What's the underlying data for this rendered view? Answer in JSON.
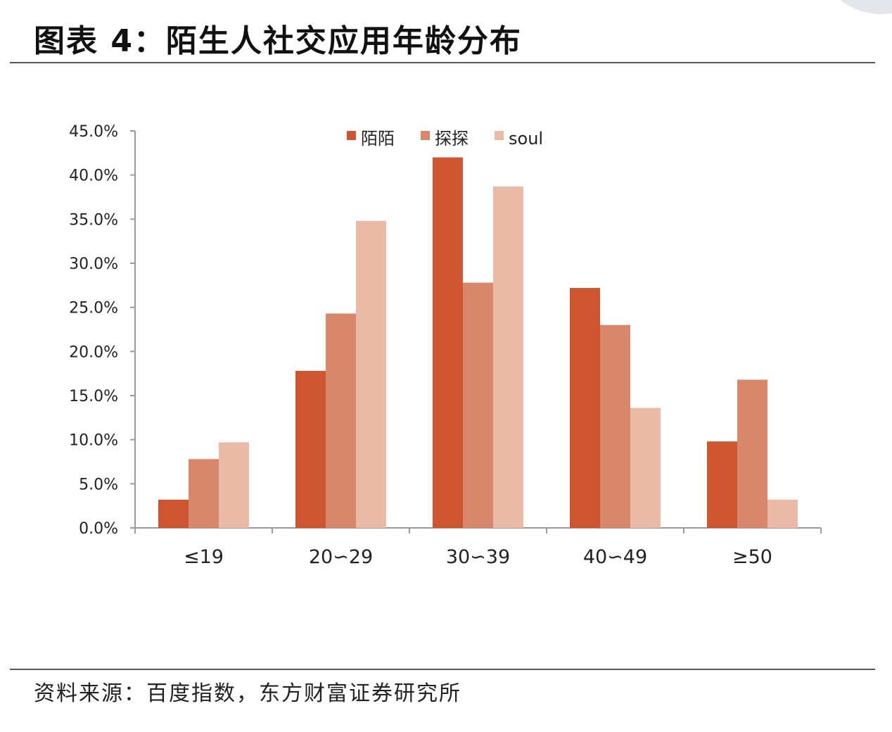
{
  "header": {
    "title": "图表 4：陌生人社交应用年龄分布"
  },
  "footer": {
    "source": "资料来源：百度指数，东方财富证券研究所"
  },
  "chart_data": {
    "type": "bar",
    "categories": [
      "≤19",
      "20∽29",
      "30∽39",
      "40∽49",
      "≥50"
    ],
    "series": [
      {
        "name": "陌陌",
        "color": "#cd5630",
        "values": [
          3.2,
          17.8,
          42.0,
          27.2,
          9.8
        ]
      },
      {
        "name": "探探",
        "color": "#d9876a",
        "values": [
          7.8,
          24.3,
          27.8,
          23.0,
          16.8
        ]
      },
      {
        "name": "soul",
        "color": "#ebbaa6",
        "values": [
          9.7,
          34.8,
          38.7,
          13.6,
          3.2
        ]
      }
    ],
    "ylim": [
      0,
      45
    ],
    "ytick_step": 5,
    "ytick_labels": [
      "0.0%",
      "5.0%",
      "10.0%",
      "15.0%",
      "20.0%",
      "25.0%",
      "30.0%",
      "35.0%",
      "40.0%",
      "45.0%"
    ],
    "legend_position": "top-center",
    "grid": false
  }
}
